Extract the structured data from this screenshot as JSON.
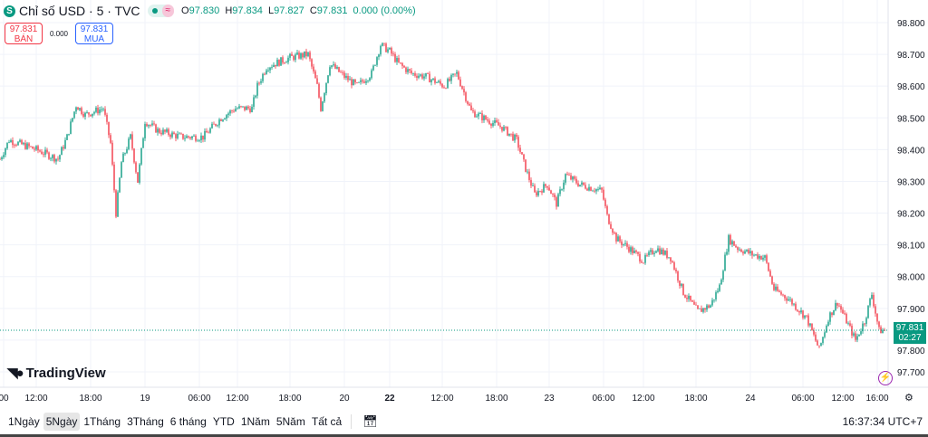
{
  "header": {
    "symbol_icon": "S",
    "title": "Chỉ số USD · 5 · TVC",
    "status_icon": "market-open-dot",
    "eq_icon": "≈",
    "ohlc": {
      "o_label": "O",
      "o": "97.830",
      "h_label": "H",
      "h": "97.834",
      "l_label": "L",
      "l": "97.827",
      "c_label": "C",
      "c": "97.831",
      "change": "0.000 (0.00%)"
    }
  },
  "trade": {
    "sell_price": "97.831",
    "sell_label": "BÁN",
    "spread": "0.000",
    "buy_price": "97.831",
    "buy_label": "MUA"
  },
  "logo": {
    "text": "TradingView"
  },
  "price_tag": {
    "price": "97.831",
    "countdown": "02:27"
  },
  "bottom": {
    "ranges": [
      "1Ngày",
      "5Ngày",
      "1Tháng",
      "3Tháng",
      "6 tháng",
      "YTD",
      "1Năm",
      "5Năm",
      "Tất cả"
    ],
    "active_range": "5Ngày",
    "clock": "16:37:34 UTC+7"
  },
  "colors": {
    "up": "#089981",
    "down": "#f23645",
    "grid": "#f0f3fa"
  },
  "chart_data": {
    "type": "candlestick",
    "title": "Chỉ số USD · 5 · TVC",
    "ylim": [
      97.68,
      98.82
    ],
    "y_ticks": [
      "98.800",
      "98.700",
      "98.600",
      "98.500",
      "98.400",
      "98.300",
      "98.200",
      "98.100",
      "98.000",
      "97.900",
      "97.800",
      "97.700"
    ],
    "x_range": [
      0,
      490
    ],
    "x_unit": "bar index (5-minute bars)",
    "x_ticks": [
      {
        "bar": 2,
        "label": "00"
      },
      {
        "bar": 20,
        "label": "12:00"
      },
      {
        "bar": 50,
        "label": "18:00"
      },
      {
        "bar": 80,
        "label": "19"
      },
      {
        "bar": 110,
        "label": "06:00"
      },
      {
        "bar": 131,
        "label": "12:00"
      },
      {
        "bar": 160,
        "label": "18:00"
      },
      {
        "bar": 190,
        "label": "20"
      },
      {
        "bar": 215,
        "label": "22",
        "bold": true
      },
      {
        "bar": 244,
        "label": "12:00"
      },
      {
        "bar": 274,
        "label": "18:00"
      },
      {
        "bar": 303,
        "label": "23"
      },
      {
        "bar": 333,
        "label": "06:00"
      },
      {
        "bar": 355,
        "label": "12:00"
      },
      {
        "bar": 384,
        "label": "18:00"
      },
      {
        "bar": 414,
        "label": "24"
      },
      {
        "bar": 443,
        "label": "06:00"
      },
      {
        "bar": 465,
        "label": "12:00"
      },
      {
        "bar": 484,
        "label": "16:00"
      }
    ],
    "last_price": 97.831,
    "close_path": [
      [
        0,
        98.37
      ],
      [
        5,
        98.43
      ],
      [
        20,
        98.4
      ],
      [
        32,
        98.37
      ],
      [
        37,
        98.44
      ],
      [
        42,
        98.54
      ],
      [
        47,
        98.51
      ],
      [
        57,
        98.53
      ],
      [
        61,
        98.42
      ],
      [
        64,
        98.2
      ],
      [
        67,
        98.36
      ],
      [
        72,
        98.44
      ],
      [
        76,
        98.3
      ],
      [
        80,
        98.49
      ],
      [
        87,
        98.46
      ],
      [
        100,
        98.44
      ],
      [
        112,
        98.44
      ],
      [
        122,
        98.5
      ],
      [
        130,
        98.53
      ],
      [
        139,
        98.53
      ],
      [
        142,
        98.6
      ],
      [
        147,
        98.66
      ],
      [
        160,
        98.69
      ],
      [
        170,
        98.7
      ],
      [
        175,
        98.6
      ],
      [
        177,
        98.53
      ],
      [
        182,
        98.67
      ],
      [
        190,
        98.63
      ],
      [
        197,
        98.6
      ],
      [
        205,
        98.64
      ],
      [
        210,
        98.73
      ],
      [
        215,
        98.71
      ],
      [
        220,
        98.67
      ],
      [
        227,
        98.64
      ],
      [
        235,
        98.63
      ],
      [
        245,
        98.6
      ],
      [
        252,
        98.64
      ],
      [
        260,
        98.52
      ],
      [
        270,
        98.49
      ],
      [
        277,
        98.47
      ],
      [
        285,
        98.43
      ],
      [
        290,
        98.34
      ],
      [
        295,
        98.26
      ],
      [
        302,
        98.29
      ],
      [
        307,
        98.23
      ],
      [
        312,
        98.32
      ],
      [
        320,
        98.29
      ],
      [
        332,
        98.27
      ],
      [
        335,
        98.19
      ],
      [
        340,
        98.12
      ],
      [
        347,
        98.09
      ],
      [
        355,
        98.05
      ],
      [
        362,
        98.09
      ],
      [
        370,
        98.06
      ],
      [
        377,
        97.95
      ],
      [
        385,
        97.89
      ],
      [
        392,
        97.91
      ],
      [
        397,
        97.97
      ],
      [
        402,
        98.12
      ],
      [
        407,
        98.09
      ],
      [
        415,
        98.07
      ],
      [
        422,
        98.06
      ],
      [
        427,
        97.96
      ],
      [
        435,
        97.93
      ],
      [
        445,
        97.87
      ],
      [
        452,
        97.77
      ],
      [
        457,
        97.87
      ],
      [
        462,
        97.92
      ],
      [
        467,
        97.86
      ],
      [
        472,
        97.8
      ],
      [
        477,
        97.86
      ],
      [
        481,
        97.945
      ],
      [
        485,
        97.83
      ],
      [
        488,
        97.831
      ]
    ]
  }
}
